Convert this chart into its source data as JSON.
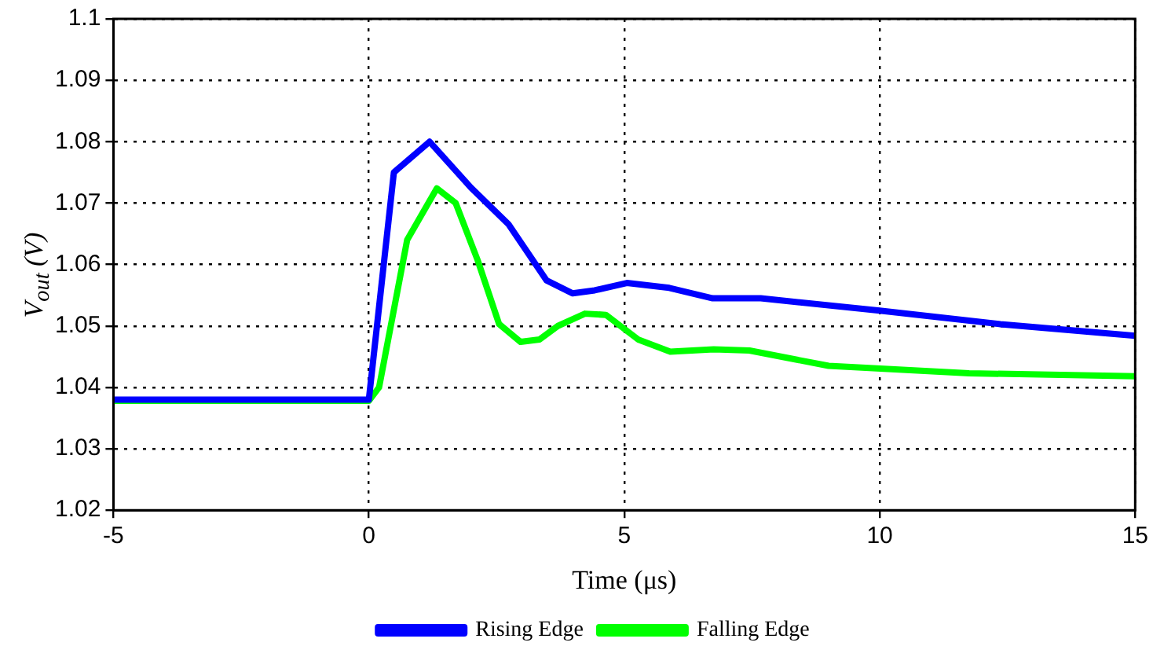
{
  "chart_data": {
    "type": "line",
    "xlabel": "Time (μs)",
    "ylabel": "V$_{out}$ (V)",
    "xlim": [
      -5,
      15
    ],
    "xticks": [
      -5,
      0,
      5,
      10,
      15
    ],
    "ylim": [
      1.02,
      1.1
    ],
    "yticks": [
      1.02,
      1.03,
      1.04,
      1.05,
      1.06,
      1.07,
      1.08,
      1.09,
      1.1
    ],
    "grid": true,
    "legend": "bottom",
    "marker": "none",
    "line_style": "solid",
    "series": [
      {
        "name": "Rising Edge",
        "color": "#0000ff",
        "x": [
          -5,
          0,
          0.49,
          1.19,
          2.0,
          2.73,
          3.48,
          3.99,
          4.42,
          5.05,
          5.88,
          6.73,
          7.67,
          10,
          12.36,
          15
        ],
        "values": [
          1.038,
          1.038,
          1.075,
          1.08,
          1.0725,
          1.0666,
          1.0574,
          1.0553,
          1.0558,
          1.057,
          1.0562,
          1.0545,
          1.0545,
          1.0525,
          1.0503,
          1.0484
        ]
      },
      {
        "name": "Falling Edge",
        "color": "#00ff00",
        "x": [
          -5,
          0,
          0.2,
          0.75,
          1.33,
          1.7,
          2.13,
          2.55,
          2.97,
          3.34,
          3.7,
          4.23,
          4.64,
          5.27,
          5.9,
          6.75,
          7.45,
          9.0,
          11.75,
          15
        ],
        "values": [
          1.0378,
          1.0378,
          1.04,
          1.064,
          1.0724,
          1.07,
          1.0607,
          1.0503,
          1.0474,
          1.0478,
          1.05,
          1.052,
          1.0518,
          1.0478,
          1.0458,
          1.0462,
          1.046,
          1.0435,
          1.0423,
          1.0418
        ]
      }
    ]
  }
}
